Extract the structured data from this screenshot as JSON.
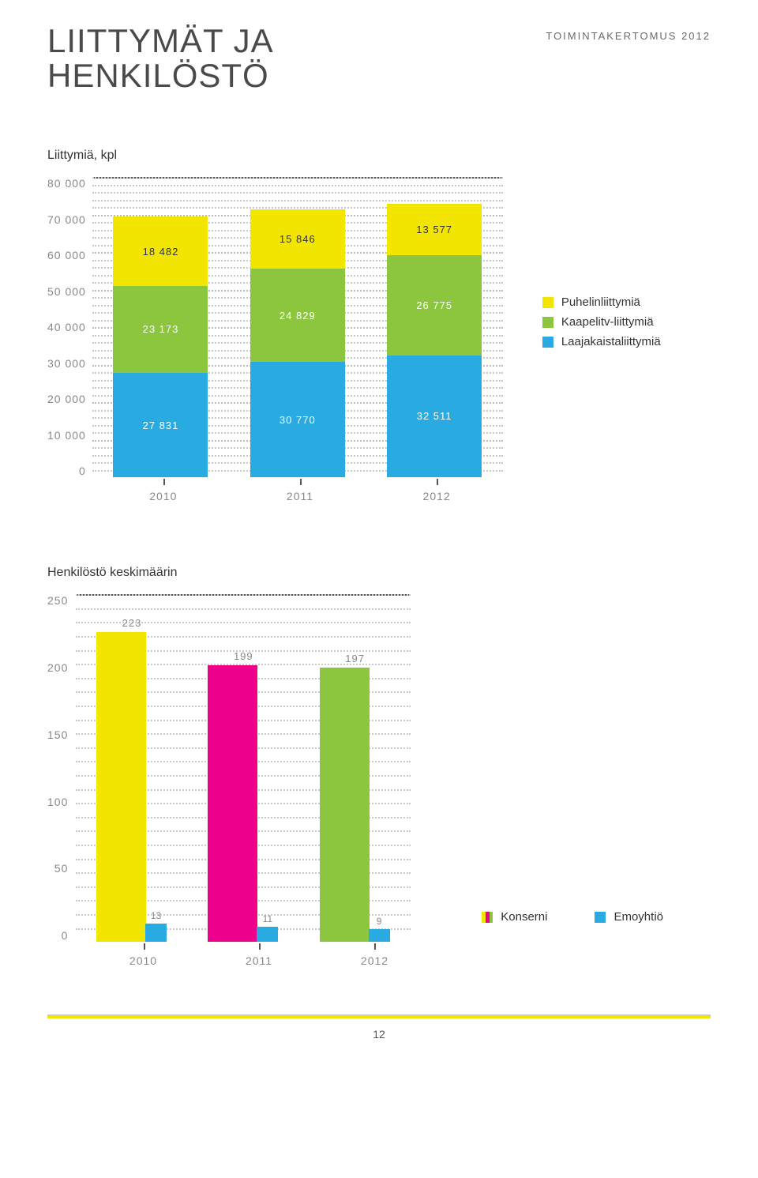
{
  "doc_header": "TOIMINTAKERTOMUS 2012",
  "page_title_line1": "LIITTYMÄT JA",
  "page_title_line2": "HENKILÖSTÖ",
  "page_number": "12",
  "colors": {
    "yellow": "#f2e600",
    "green": "#8cc63f",
    "blue": "#29abe2",
    "magenta": "#ec008c",
    "grid": "#c9c9c9",
    "axis": "#555555",
    "text_muted": "#888888"
  },
  "chart1": {
    "type": "stacked-bar",
    "title": "Liittymiä, kpl",
    "y_max": 80000,
    "y_ticks": [
      "80 000",
      "70 000",
      "60 000",
      "50 000",
      "40 000",
      "30 000",
      "20 000",
      "10 000",
      "0"
    ],
    "categories": [
      "2010",
      "2011",
      "2012"
    ],
    "series": [
      {
        "key": "laaja",
        "label": "Laajakaistaliittymiä",
        "color": "#29abe2"
      },
      {
        "key": "kaapeli",
        "label": "Kaapelitv-liittymiä",
        "color": "#8cc63f"
      },
      {
        "key": "puhelin",
        "label": "Puhelinliittymiä",
        "color": "#f2e600"
      }
    ],
    "data": {
      "laaja": [
        27831,
        30770,
        32511
      ],
      "kaapeli": [
        23173,
        24829,
        26775
      ],
      "puhelin": [
        18482,
        15846,
        13577
      ]
    },
    "labels": {
      "laaja": [
        "27 831",
        "30 770",
        "32 511"
      ],
      "kaapeli": [
        "23 173",
        "24 829",
        "26 775"
      ],
      "puhelin": [
        "18 482",
        "15 846",
        "13 577"
      ]
    },
    "legend": [
      {
        "color": "#f2e600",
        "label": "Puhelinliittymiä"
      },
      {
        "color": "#8cc63f",
        "label": "Kaapelitv-liittymiä"
      },
      {
        "color": "#29abe2",
        "label": "Laajakaistaliittymiä"
      }
    ]
  },
  "chart2": {
    "type": "grouped-bar",
    "title": "Henkilöstö keskimäärin",
    "y_max": 250,
    "y_ticks": [
      "250",
      "200",
      "150",
      "100",
      "50",
      "0"
    ],
    "categories": [
      "2010",
      "2011",
      "2012"
    ],
    "konserni": {
      "values": [
        223,
        199,
        197
      ],
      "labels": [
        "223",
        "199",
        "197"
      ],
      "colors": [
        "#f2e600",
        "#ec008c",
        "#8cc63f"
      ]
    },
    "emoyhtio": {
      "values": [
        13,
        11,
        9
      ],
      "labels": [
        "13",
        "11",
        "9"
      ],
      "color": "#29abe2"
    },
    "legend": [
      {
        "type": "split",
        "colors": [
          "#f2e600",
          "#ec008c",
          "#8cc63f"
        ],
        "label": "Konserni"
      },
      {
        "type": "solid",
        "color": "#29abe2",
        "label": "Emoyhtiö"
      }
    ]
  }
}
